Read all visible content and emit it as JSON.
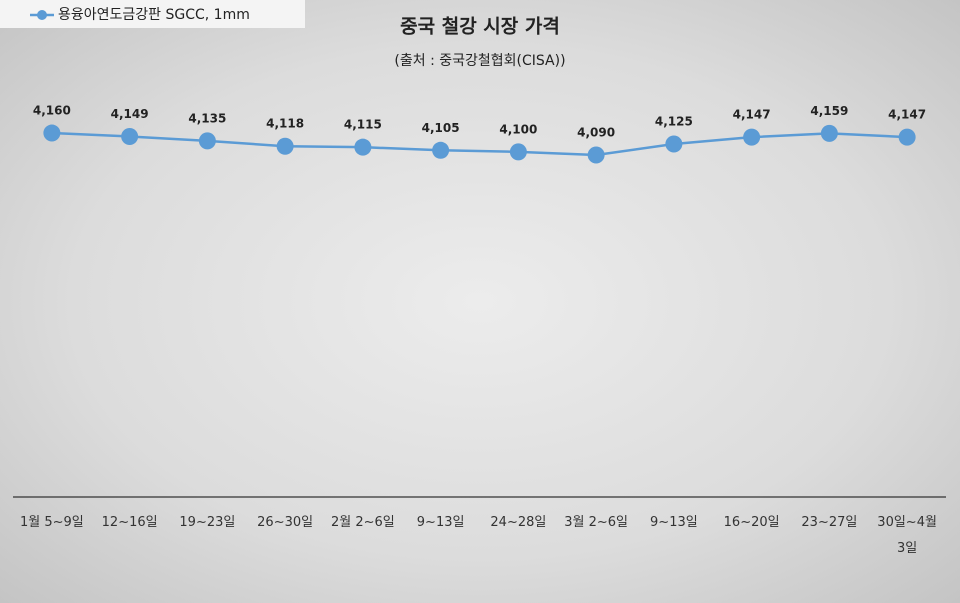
{
  "chart_data": {
    "type": "line",
    "title": "중국 철강 시장 가격",
    "subtitle": "(출처 : 중국강철협회(CISA))",
    "categories": [
      "1월 5~9일",
      "12~16일",
      "19~23일",
      "26~30일",
      "2월 2~6일",
      "9~13일",
      "24~28일",
      "3월 2~6일",
      "9~13일",
      "16~20일",
      "23~27일",
      "30일~4월 3일"
    ],
    "series": [
      {
        "name": "용융아연도금강판 SGCC, 1mm",
        "color": "#5b9bd5",
        "values": [
          4160,
          4149,
          4135,
          4118,
          4115,
          4105,
          4100,
          4090,
          4125,
          4147,
          4159,
          4147
        ],
        "value_labels": [
          "4,160",
          "4,149",
          "4,135",
          "4,118",
          "4,115",
          "4,105",
          "4,100",
          "4,090",
          "4,125",
          "4,147",
          "4,159",
          "4,147"
        ]
      }
    ],
    "ylim": [
      3000,
      4600
    ],
    "legend": "top-left"
  }
}
